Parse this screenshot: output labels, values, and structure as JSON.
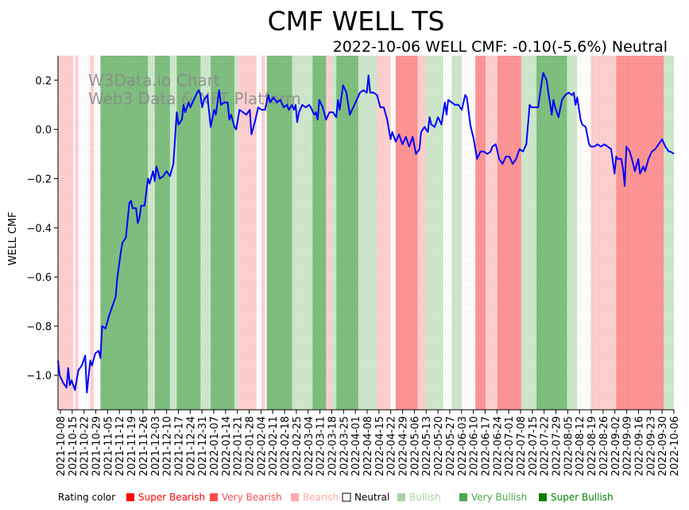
{
  "colors": {
    "super_bearish": "#ff0000",
    "very_bearish": "#ff4d4d",
    "bearish": "#ffaaaa",
    "neutral": "#ffffff",
    "bullish": "#a8d5a2",
    "very_bullish": "#4ca64c",
    "super_bullish": "#007f00",
    "line": "#0000ff"
  },
  "chart_data": {
    "type": "line",
    "title": "CMF WELL TS",
    "subtitle": "2022-10-06 WELL CMF: -0.10(-5.6%) Neutral",
    "ylabel": "WELL CMF",
    "xlabel": "",
    "ylim": [
      -1.14,
      0.3
    ],
    "xlim": [
      0,
      363
    ],
    "yticks": [
      0.2,
      0.0,
      -0.2,
      -0.4,
      -0.6,
      -0.8,
      -1.0
    ],
    "ytick_labels": [
      "0.2",
      "0.0",
      "−0.2",
      "−0.4",
      "−0.6",
      "−0.8",
      "−1.0"
    ],
    "xtick_labels": [
      "2021-10-08",
      "2021-10-15",
      "2021-10-22",
      "2021-10-29",
      "2021-11-05",
      "2021-11-12",
      "2021-11-19",
      "2021-11-26",
      "2021-12-03",
      "2021-12-10",
      "2021-12-17",
      "2021-12-24",
      "2021-12-31",
      "2022-01-07",
      "2022-01-14",
      "2022-01-21",
      "2022-01-28",
      "2022-02-04",
      "2022-02-11",
      "2022-02-18",
      "2022-02-25",
      "2022-03-04",
      "2022-03-11",
      "2022-03-18",
      "2022-03-25",
      "2022-04-01",
      "2022-04-08",
      "2022-04-15",
      "2022-04-22",
      "2022-04-29",
      "2022-05-06",
      "2022-05-13",
      "2022-05-20",
      "2022-05-27",
      "2022-06-03",
      "2022-06-10",
      "2022-06-17",
      "2022-06-24",
      "2022-07-01",
      "2022-07-08",
      "2022-07-15",
      "2022-07-22",
      "2022-07-29",
      "2022-08-05",
      "2022-08-12",
      "2022-08-19",
      "2022-08-26",
      "2022-09-02",
      "2022-09-09",
      "2022-09-16",
      "2022-09-23",
      "2022-09-30",
      "2022-10-06"
    ],
    "series": [
      {
        "name": "WELL CMF",
        "points": [
          [
            0,
            -0.94
          ],
          [
            1,
            -1.0
          ],
          [
            3,
            -1.03
          ],
          [
            5,
            -1.05
          ],
          [
            6,
            -0.97
          ],
          [
            7,
            -1.04
          ],
          [
            8,
            -1.02
          ],
          [
            10,
            -1.06
          ],
          [
            12,
            -0.98
          ],
          [
            14,
            -0.96
          ],
          [
            16,
            -0.92
          ],
          [
            17,
            -1.07
          ],
          [
            19,
            -0.94
          ],
          [
            20,
            -0.96
          ],
          [
            22,
            -0.91
          ],
          [
            24,
            -0.9
          ],
          [
            25,
            -0.93
          ],
          [
            26,
            -0.8
          ],
          [
            28,
            -0.81
          ],
          [
            30,
            -0.76
          ],
          [
            32,
            -0.72
          ],
          [
            34,
            -0.68
          ],
          [
            35,
            -0.6
          ],
          [
            37,
            -0.5
          ],
          [
            38,
            -0.46
          ],
          [
            40,
            -0.44
          ],
          [
            42,
            -0.3
          ],
          [
            43,
            -0.29
          ],
          [
            44,
            -0.32
          ],
          [
            46,
            -0.32
          ],
          [
            47,
            -0.38
          ],
          [
            48,
            -0.36
          ],
          [
            49,
            -0.31
          ],
          [
            51,
            -0.31
          ],
          [
            53,
            -0.2
          ],
          [
            54,
            -0.22
          ],
          [
            56,
            -0.17
          ],
          [
            57,
            -0.21
          ],
          [
            58,
            -0.15
          ],
          [
            60,
            -0.2
          ],
          [
            62,
            -0.19
          ],
          [
            64,
            -0.17
          ],
          [
            66,
            -0.19
          ],
          [
            68,
            -0.14
          ],
          [
            70,
            0.07
          ],
          [
            71,
            0.02
          ],
          [
            73,
            0.04
          ],
          [
            74,
            0.1
          ],
          [
            75,
            0.07
          ],
          [
            77,
            0.11
          ],
          [
            78,
            0.09
          ],
          [
            80,
            0.12
          ],
          [
            82,
            0.15
          ],
          [
            83,
            0.16
          ],
          [
            84,
            0.14
          ],
          [
            85,
            0.09
          ],
          [
            86,
            0.12
          ],
          [
            88,
            0.14
          ],
          [
            90,
            0.01
          ],
          [
            92,
            0.08
          ],
          [
            93,
            0.06
          ],
          [
            95,
            0.16
          ],
          [
            96,
            0.1
          ],
          [
            98,
            0.11
          ],
          [
            100,
            0.11
          ],
          [
            101,
            0.04
          ],
          [
            102,
            0.06
          ],
          [
            104,
            0.01
          ],
          [
            105,
            0.0
          ],
          [
            107,
            0.08
          ],
          [
            109,
            0.07
          ],
          [
            111,
            0.06
          ],
          [
            113,
            0.08
          ],
          [
            114,
            -0.02
          ],
          [
            116,
            0.03
          ],
          [
            118,
            0.09
          ],
          [
            120,
            0.08
          ],
          [
            122,
            0.08
          ],
          [
            124,
            0.14
          ],
          [
            125,
            0.11
          ],
          [
            127,
            0.13
          ],
          [
            129,
            0.11
          ],
          [
            131,
            0.12
          ],
          [
            133,
            0.09
          ],
          [
            135,
            0.1
          ],
          [
            136,
            0.08
          ],
          [
            138,
            0.1
          ],
          [
            139,
            0.08
          ],
          [
            140,
            0.1
          ],
          [
            141,
            0.03
          ],
          [
            142,
            0.07
          ],
          [
            144,
            0.1
          ],
          [
            146,
            0.09
          ],
          [
            148,
            0.1
          ],
          [
            149,
            0.09
          ],
          [
            151,
            0.06
          ],
          [
            152,
            0.07
          ],
          [
            153,
            0.04
          ],
          [
            154,
            0.12
          ],
          [
            156,
            0.09
          ],
          [
            158,
            0.04
          ],
          [
            160,
            0.07
          ],
          [
            162,
            0.07
          ],
          [
            164,
            0.05
          ],
          [
            165,
            0.12
          ],
          [
            166,
            0.08
          ],
          [
            168,
            0.18
          ],
          [
            170,
            0.15
          ],
          [
            172,
            0.06
          ],
          [
            174,
            0.09
          ],
          [
            176,
            0.12
          ],
          [
            178,
            0.15
          ],
          [
            180,
            0.16
          ],
          [
            182,
            0.15
          ],
          [
            183,
            0.22
          ],
          [
            184,
            0.15
          ],
          [
            186,
            0.15
          ],
          [
            188,
            0.14
          ],
          [
            190,
            0.09
          ],
          [
            192,
            0.09
          ],
          [
            194,
            0.04
          ],
          [
            196,
            -0.04
          ],
          [
            197,
            -0.01
          ],
          [
            199,
            -0.05
          ],
          [
            201,
            -0.02
          ],
          [
            203,
            -0.06
          ],
          [
            205,
            -0.03
          ],
          [
            207,
            -0.07
          ],
          [
            209,
            -0.03
          ],
          [
            211,
            -0.1
          ],
          [
            213,
            -0.08
          ],
          [
            214,
            -0.01
          ],
          [
            216,
            0.01
          ],
          [
            218,
            -0.01
          ],
          [
            219,
            0.05
          ],
          [
            220,
            0.02
          ],
          [
            222,
            0.01
          ],
          [
            224,
            0.05
          ],
          [
            226,
            0.02
          ],
          [
            228,
            0.11
          ],
          [
            229,
            0.06
          ],
          [
            230,
            0.12
          ],
          [
            232,
            0.11
          ],
          [
            234,
            0.1
          ],
          [
            236,
            0.1
          ],
          [
            238,
            0.08
          ],
          [
            240,
            0.14
          ],
          [
            241,
            0.13
          ],
          [
            243,
            0.02
          ],
          [
            245,
            -0.04
          ],
          [
            246,
            -0.08
          ],
          [
            247,
            -0.12
          ],
          [
            249,
            -0.09
          ],
          [
            251,
            -0.09
          ],
          [
            253,
            -0.1
          ],
          [
            255,
            -0.09
          ],
          [
            256,
            -0.07
          ],
          [
            258,
            -0.06
          ],
          [
            260,
            -0.12
          ],
          [
            262,
            -0.14
          ],
          [
            264,
            -0.11
          ],
          [
            266,
            -0.11
          ],
          [
            268,
            -0.14
          ],
          [
            270,
            -0.12
          ],
          [
            272,
            -0.08
          ],
          [
            274,
            -0.09
          ],
          [
            276,
            -0.06
          ],
          [
            278,
            0.1
          ],
          [
            279,
            0.09
          ],
          [
            281,
            0.09
          ],
          [
            283,
            0.09
          ],
          [
            285,
            0.19
          ],
          [
            286,
            0.23
          ],
          [
            288,
            0.2
          ],
          [
            289,
            0.15
          ],
          [
            291,
            0.06
          ],
          [
            292,
            0.12
          ],
          [
            293,
            0.09
          ],
          [
            295,
            0.05
          ],
          [
            297,
            0.12
          ],
          [
            299,
            0.14
          ],
          [
            301,
            0.15
          ],
          [
            303,
            0.14
          ],
          [
            304,
            0.15
          ],
          [
            305,
            0.1
          ],
          [
            306,
            0.13
          ],
          [
            308,
            0.04
          ],
          [
            309,
            0.02
          ],
          [
            311,
            0.01
          ],
          [
            313,
            -0.06
          ],
          [
            314,
            -0.07
          ],
          [
            316,
            -0.07
          ],
          [
            318,
            -0.06
          ],
          [
            320,
            -0.07
          ],
          [
            322,
            -0.06
          ],
          [
            324,
            -0.07
          ],
          [
            326,
            -0.08
          ],
          [
            328,
            -0.18
          ],
          [
            329,
            -0.11
          ],
          [
            330,
            -0.12
          ],
          [
            332,
            -0.12
          ],
          [
            333,
            -0.16
          ],
          [
            334,
            -0.23
          ],
          [
            335,
            -0.07
          ],
          [
            337,
            -0.09
          ],
          [
            339,
            -0.14
          ],
          [
            340,
            -0.17
          ],
          [
            342,
            -0.12
          ],
          [
            343,
            -0.18
          ],
          [
            345,
            -0.15
          ],
          [
            346,
            -0.17
          ],
          [
            348,
            -0.12
          ],
          [
            350,
            -0.09
          ],
          [
            352,
            -0.08
          ],
          [
            354,
            -0.06
          ],
          [
            356,
            -0.04
          ],
          [
            358,
            -0.07
          ],
          [
            360,
            -0.09
          ],
          [
            361,
            -0.09
          ],
          [
            363,
            -0.1
          ]
        ]
      }
    ],
    "rating_bands": [
      {
        "start": 0,
        "end": 9,
        "rating": "bearish"
      },
      {
        "start": 10,
        "end": 12,
        "rating": "bearish"
      },
      {
        "start": 14,
        "end": 18,
        "rating": "neutral"
      },
      {
        "start": 19,
        "end": 21,
        "rating": "bearish"
      },
      {
        "start": 25,
        "end": 38,
        "rating": "very_bullish"
      },
      {
        "start": 38,
        "end": 53,
        "rating": "very_bullish"
      },
      {
        "start": 53,
        "end": 57,
        "rating": "bullish"
      },
      {
        "start": 57,
        "end": 66,
        "rating": "very_bullish"
      },
      {
        "start": 66,
        "end": 70,
        "rating": "bullish"
      },
      {
        "start": 70,
        "end": 84,
        "rating": "very_bullish"
      },
      {
        "start": 84,
        "end": 90,
        "rating": "bullish"
      },
      {
        "start": 90,
        "end": 104,
        "rating": "very_bullish"
      },
      {
        "start": 104,
        "end": 106,
        "rating": "bullish"
      },
      {
        "start": 106,
        "end": 117,
        "rating": "bearish"
      },
      {
        "start": 120,
        "end": 122,
        "rating": "bearish"
      },
      {
        "start": 123,
        "end": 138,
        "rating": "very_bullish"
      },
      {
        "start": 138,
        "end": 142,
        "rating": "bullish"
      },
      {
        "start": 142,
        "end": 150,
        "rating": "bullish"
      },
      {
        "start": 150,
        "end": 158,
        "rating": "very_bullish"
      },
      {
        "start": 158,
        "end": 161,
        "rating": "bearish"
      },
      {
        "start": 161,
        "end": 164,
        "rating": "bullish"
      },
      {
        "start": 164,
        "end": 177,
        "rating": "very_bullish"
      },
      {
        "start": 177,
        "end": 188,
        "rating": "bullish"
      },
      {
        "start": 188,
        "end": 196,
        "rating": "bearish"
      },
      {
        "start": 199,
        "end": 212,
        "rating": "very_bearish"
      },
      {
        "start": 212,
        "end": 217,
        "rating": "bearish"
      },
      {
        "start": 217,
        "end": 227,
        "rating": "bullish"
      },
      {
        "start": 227,
        "end": 232,
        "rating": "neutral"
      },
      {
        "start": 232,
        "end": 238,
        "rating": "bullish"
      },
      {
        "start": 238,
        "end": 246,
        "rating": "neutral"
      },
      {
        "start": 246,
        "end": 252,
        "rating": "very_bearish"
      },
      {
        "start": 252,
        "end": 259,
        "rating": "bearish"
      },
      {
        "start": 259,
        "end": 273,
        "rating": "very_bearish"
      },
      {
        "start": 273,
        "end": 282,
        "rating": "bullish"
      },
      {
        "start": 282,
        "end": 288,
        "rating": "very_bullish"
      },
      {
        "start": 288,
        "end": 300,
        "rating": "very_bullish"
      },
      {
        "start": 300,
        "end": 306,
        "rating": "bullish"
      },
      {
        "start": 306,
        "end": 314,
        "rating": "neutral"
      },
      {
        "start": 314,
        "end": 329,
        "rating": "bearish"
      },
      {
        "start": 329,
        "end": 338,
        "rating": "very_bearish"
      },
      {
        "start": 338,
        "end": 350,
        "rating": "very_bearish"
      },
      {
        "start": 350,
        "end": 357,
        "rating": "very_bearish"
      },
      {
        "start": 357,
        "end": 363,
        "rating": "bullish"
      }
    ],
    "legend_title": "Rating color",
    "legend": [
      {
        "label": "Super Bearish",
        "key": "super_bearish"
      },
      {
        "label": "Very Bearish",
        "key": "very_bearish"
      },
      {
        "label": "Bearish",
        "key": "bearish"
      },
      {
        "label": "Neutral",
        "key": "neutral"
      },
      {
        "label": "Bullish",
        "key": "bullish"
      },
      {
        "label": "Very Bullish",
        "key": "very_bullish"
      },
      {
        "label": "Super Bullish",
        "key": "super_bullish"
      }
    ],
    "legend_position": "bottom"
  },
  "watermark": {
    "line1": "W3Data.io Chart",
    "line2": "Web3 Data & NFT Platform"
  }
}
